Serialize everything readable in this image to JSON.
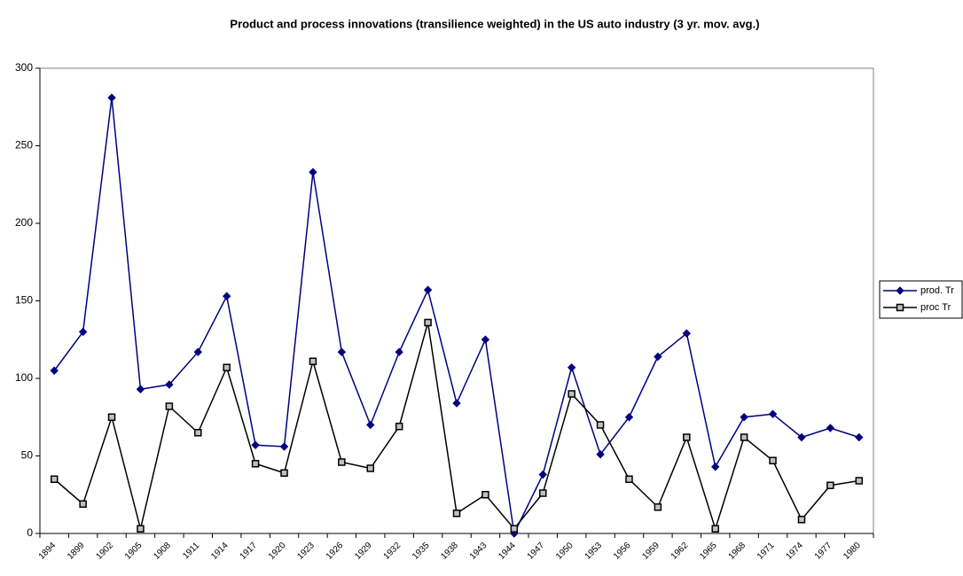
{
  "chart_data": {
    "type": "line",
    "title": "Product and process innovations (transilience weighted) in the US auto industry (3 yr. mov. avg.)",
    "categories": [
      "1894",
      "1899",
      "1902",
      "1905",
      "1908",
      "1911",
      "1914",
      "1917",
      "1920",
      "1923",
      "1926",
      "1929",
      "1932",
      "1935",
      "1938",
      "1943",
      "1944",
      "1947",
      "1950",
      "1953",
      "1956",
      "1959",
      "1962",
      "1965",
      "1968",
      "1971",
      "1974",
      "1977",
      "1980"
    ],
    "series": [
      {
        "name": "prod. Tr",
        "color": "#000080",
        "marker": "diamond",
        "values": [
          105,
          130,
          281,
          93,
          96,
          117,
          153,
          57,
          56,
          233,
          117,
          70,
          117,
          157,
          84,
          125,
          0,
          38,
          107,
          51,
          75,
          114,
          129,
          43,
          75,
          77,
          62,
          68,
          62
        ]
      },
      {
        "name": "proc Tr",
        "color": "#000000",
        "marker": "square",
        "values": [
          35,
          19,
          75,
          3,
          82,
          65,
          107,
          45,
          39,
          111,
          46,
          42,
          69,
          136,
          13,
          25,
          3,
          26,
          90,
          70,
          35,
          17,
          62,
          3,
          62,
          47,
          9,
          31,
          34
        ]
      }
    ],
    "ylim": [
      0,
      300
    ],
    "yticks": [
      0,
      50,
      100,
      150,
      200,
      250,
      300
    ],
    "grid": false,
    "legend": "right"
  }
}
